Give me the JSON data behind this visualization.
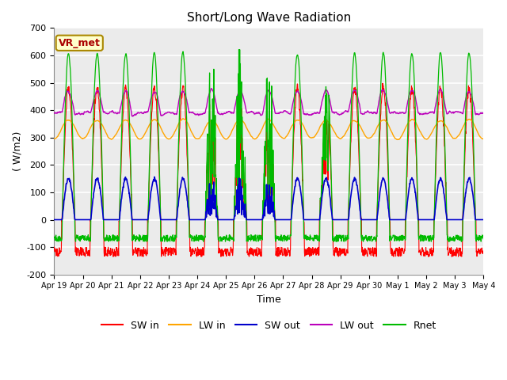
{
  "title": "Short/Long Wave Radiation",
  "ylabel": "( W/m2)",
  "xlabel": "Time",
  "ylim": [
    -200,
    700
  ],
  "ytick_labels": [
    -200,
    -100,
    0,
    100,
    200,
    300,
    400,
    500,
    600,
    700
  ],
  "xtick_labels": [
    "Apr 19",
    "Apr 20",
    "Apr 21",
    "Apr 22",
    "Apr 23",
    "Apr 24",
    "Apr 25",
    "Apr 26",
    "Apr 27",
    "Apr 28",
    "Apr 29",
    "Apr 30",
    "May 1",
    "May 2",
    "May 3",
    "May 4"
  ],
  "colors": {
    "SW_in": "#ff0000",
    "LW_in": "#ffa500",
    "SW_out": "#0000cc",
    "LW_out": "#bb00bb",
    "Rnet": "#00bb00"
  },
  "legend_labels": [
    "SW in",
    "LW in",
    "SW out",
    "LW out",
    "Rnet"
  ],
  "annotation_text": "VR_met",
  "annotation_color": "#aa0000",
  "annotation_bg": "#ffffcc",
  "annotation_border": "#aa8800",
  "plot_bg": "#ebebeb",
  "fig_bg": "#ffffff",
  "n_days": 15,
  "pts_per_day": 96,
  "seed": 42
}
